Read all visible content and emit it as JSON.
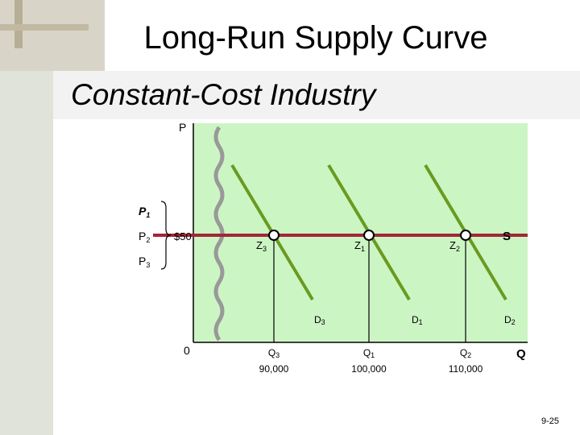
{
  "title": "Long-Run Supply Curve",
  "subtitle": "Constant-Cost Industry",
  "axes": {
    "y_label": "P",
    "x_label": "Q",
    "origin": "0"
  },
  "price_labels": [
    {
      "text": "P",
      "sub": "1"
    },
    {
      "text": "P",
      "sub": "2"
    },
    {
      "text": "P",
      "sub": "3"
    }
  ],
  "price": "$50",
  "supply_label": "S",
  "equilibria": [
    {
      "text": "Z",
      "sub": "3"
    },
    {
      "text": "Z",
      "sub": "1"
    },
    {
      "text": "Z",
      "sub": "2"
    }
  ],
  "demand": [
    {
      "text": "D",
      "sub": "3"
    },
    {
      "text": "D",
      "sub": "1"
    },
    {
      "text": "D",
      "sub": "2"
    }
  ],
  "quantities": [
    {
      "text": "Q",
      "sub": "3",
      "value": "90,000"
    },
    {
      "text": "Q",
      "sub": "1",
      "value": "100,000"
    },
    {
      "text": "Q",
      "sub": "2",
      "value": "110,000"
    }
  ],
  "page_number": "9-25"
}
